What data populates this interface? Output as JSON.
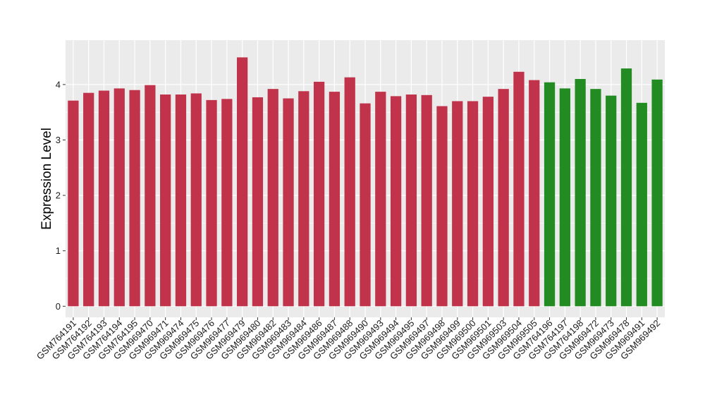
{
  "chart_data": {
    "type": "bar",
    "ylabel": "Expression Level",
    "xlabel": "",
    "ylim": [
      -0.2,
      4.8
    ],
    "y_ticks": [
      0,
      1,
      2,
      3,
      4
    ],
    "grid": true,
    "colors": {
      "group1": "#c0334a",
      "group2": "#228b22",
      "panel": "#ebebeb",
      "grid": "#ffffff"
    },
    "categories": [
      "GSM764191",
      "GSM764192",
      "GSM764193",
      "GSM764194",
      "GSM764195",
      "GSM969470",
      "GSM969471",
      "GSM969474",
      "GSM969475",
      "GSM969476",
      "GSM969477",
      "GSM969479",
      "GSM969480",
      "GSM969482",
      "GSM969483",
      "GSM969484",
      "GSM969486",
      "GSM969487",
      "GSM969488",
      "GSM969490",
      "GSM969493",
      "GSM969494",
      "GSM969495",
      "GSM969497",
      "GSM969498",
      "GSM969499",
      "GSM969500",
      "GSM969501",
      "GSM969503",
      "GSM969504",
      "GSM969505",
      "GSM764196",
      "GSM764197",
      "GSM764198",
      "GSM969472",
      "GSM969473",
      "GSM969478",
      "GSM969491",
      "GSM969492"
    ],
    "values": [
      3.71,
      3.85,
      3.89,
      3.93,
      3.9,
      3.99,
      3.82,
      3.82,
      3.84,
      3.72,
      3.74,
      4.49,
      3.77,
      3.92,
      3.75,
      3.88,
      4.05,
      3.87,
      4.13,
      3.66,
      3.87,
      3.79,
      3.82,
      3.81,
      3.61,
      3.7,
      3.7,
      3.78,
      3.92,
      4.23,
      4.08,
      4.04,
      3.93,
      4.1,
      3.92,
      3.8,
      4.29,
      3.67,
      4.09
    ],
    "groups": [
      1,
      1,
      1,
      1,
      1,
      1,
      1,
      1,
      1,
      1,
      1,
      1,
      1,
      1,
      1,
      1,
      1,
      1,
      1,
      1,
      1,
      1,
      1,
      1,
      1,
      1,
      1,
      1,
      1,
      1,
      1,
      2,
      2,
      2,
      2,
      2,
      2,
      2,
      2
    ]
  }
}
